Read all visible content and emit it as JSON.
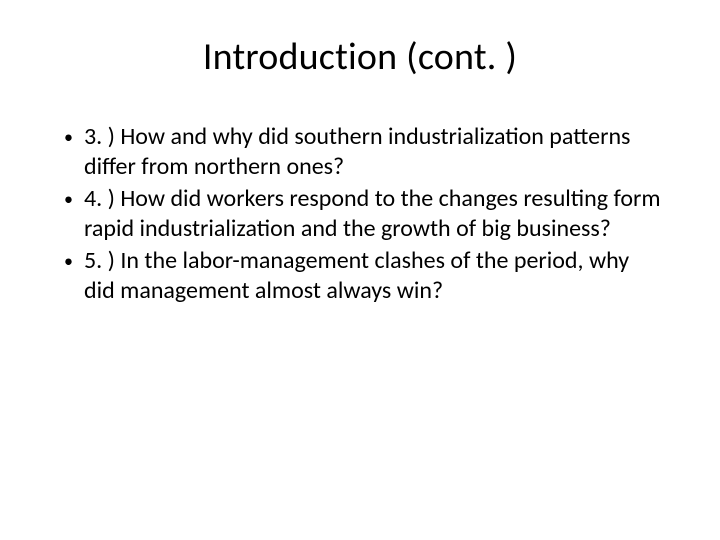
{
  "slide": {
    "title": "Introduction (cont. )",
    "background_color": "#ffffff",
    "text_color": "#000000",
    "title_fontsize": 38,
    "body_fontsize": 24,
    "font_family": "Calibri",
    "bullets": [
      {
        "marker": "•",
        "text": "3. ) How and why did southern industrialization patterns differ from northern ones?"
      },
      {
        "marker": "•",
        "text": "4. ) How did workers respond to the changes resulting form rapid industrialization and the growth of big business?"
      },
      {
        "marker": "•",
        "text": "5. ) In the labor-management clashes of the period, why did management almost always win?"
      }
    ]
  }
}
